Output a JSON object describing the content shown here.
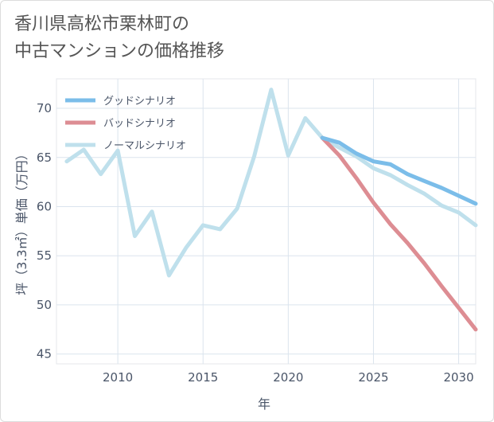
{
  "title_lines": [
    "香川県高松市栗林町の",
    "中古マンションの価格推移"
  ],
  "chart_data": {
    "type": "line",
    "xlabel": "年",
    "ylabel": "坪（3.3㎡）単価（万円）",
    "xlim": [
      2006.4,
      2031
    ],
    "ylim": [
      44,
      73
    ],
    "xticks": [
      2010,
      2015,
      2020,
      2025,
      2030
    ],
    "yticks": [
      45,
      50,
      55,
      60,
      65,
      70
    ],
    "grid": true,
    "legend_position": "top-left",
    "series": [
      {
        "name": "グッドシナリオ",
        "color": "#7bbde9",
        "x": [
          2022,
          2023,
          2024,
          2025,
          2026,
          2027,
          2028,
          2029,
          2030,
          2031
        ],
        "y": [
          67.0,
          66.5,
          65.4,
          64.6,
          64.3,
          63.3,
          62.6,
          61.9,
          61.1,
          60.3
        ]
      },
      {
        "name": "バッドシナリオ",
        "color": "#dd8d93",
        "x": [
          2022,
          2023,
          2024,
          2025,
          2026,
          2027,
          2028,
          2029,
          2030,
          2031
        ],
        "y": [
          67.0,
          65.2,
          62.9,
          60.4,
          58.2,
          56.3,
          54.2,
          51.9,
          49.7,
          47.5
        ]
      },
      {
        "name": "ノーマルシナリオ",
        "color": "#bfe0ec",
        "x": [
          2007,
          2008,
          2009,
          2010,
          2011,
          2012,
          2013,
          2014,
          2015,
          2016,
          2017,
          2018,
          2019,
          2020,
          2021,
          2022,
          2023,
          2024,
          2025,
          2026,
          2027,
          2028,
          2029,
          2030,
          2031
        ],
        "y": [
          64.6,
          65.8,
          63.3,
          65.7,
          57.0,
          59.5,
          53.0,
          55.8,
          58.1,
          57.7,
          59.8,
          65.1,
          71.9,
          65.2,
          69.0,
          67.0,
          66.0,
          65.1,
          63.9,
          63.2,
          62.2,
          61.3,
          60.1,
          59.4,
          58.1
        ]
      }
    ]
  }
}
